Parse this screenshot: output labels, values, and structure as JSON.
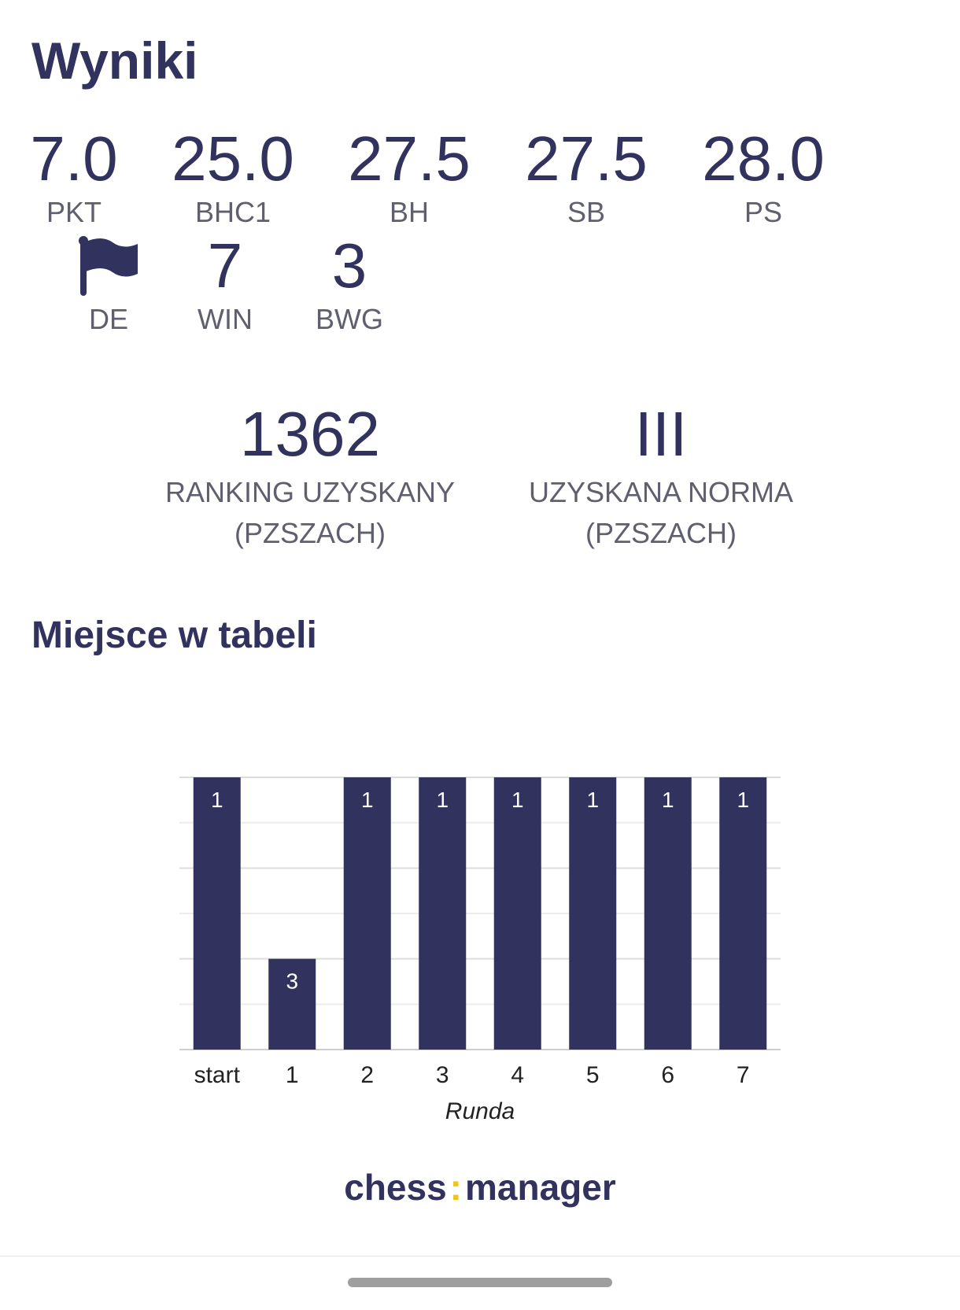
{
  "page": {
    "title": "Wyniki"
  },
  "stats": [
    {
      "value": "7.0",
      "label": "PKT"
    },
    {
      "value": "25.0",
      "label": "BHC1"
    },
    {
      "value": "27.5",
      "label": "BH"
    },
    {
      "value": "27.5",
      "label": "SB"
    },
    {
      "value": "28.0",
      "label": "PS"
    }
  ],
  "stats_row2": {
    "country": {
      "icon": "flag-icon",
      "label": "DE"
    },
    "win": {
      "value": "7",
      "label": "WIN"
    },
    "bwg": {
      "value": "3",
      "label": "BWG"
    }
  },
  "ranking": {
    "value": "1362",
    "label": "RANKING UZYSKANY (PZSZACH)"
  },
  "norma": {
    "value": "III",
    "label": "UZYSKANA NORMA (PZSZACH)"
  },
  "section": {
    "title": "Miejsce w tabeli"
  },
  "chart_data": {
    "type": "bar",
    "categories": [
      "start",
      "1",
      "2",
      "3",
      "4",
      "5",
      "6",
      "7"
    ],
    "values": [
      1,
      3,
      1,
      1,
      1,
      1,
      1,
      1
    ],
    "data_labels": [
      "1",
      "3",
      "1",
      "1",
      "1",
      "1",
      "1",
      "1"
    ],
    "xlabel": "Runda",
    "ylabel": "",
    "ylim": [
      1,
      4
    ],
    "y_inverted": true,
    "grid": true,
    "bar_color": "#32325e"
  },
  "logo": {
    "left": "chess",
    "separator": ":",
    "right": "manager"
  },
  "colors": {
    "primary": "#32325e",
    "label": "#5f5f6e",
    "accent": "#f0c419"
  }
}
